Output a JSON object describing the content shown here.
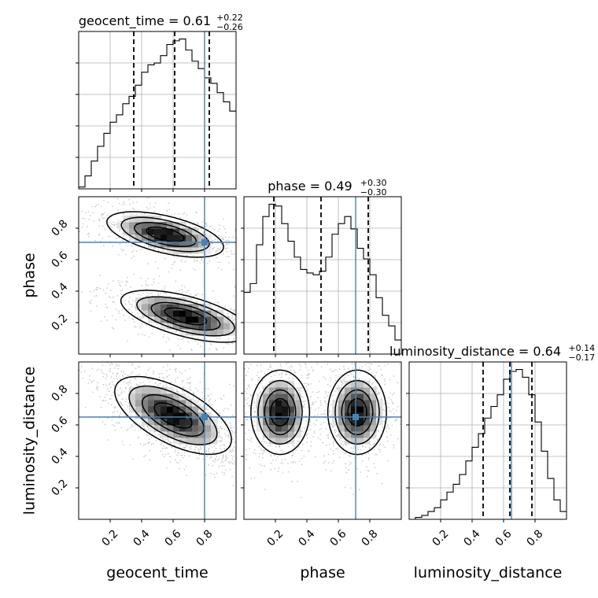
{
  "chart_data": {
    "type": "corner",
    "parameters": [
      "geocent_time",
      "phase",
      "luminosity_distance"
    ],
    "truths": [
      0.8,
      0.71,
      0.65
    ],
    "truth_color": "#4682b4",
    "axis_range": [
      0.0,
      1.0
    ],
    "ticks": [
      0.2,
      0.4,
      0.6,
      0.8
    ],
    "tick_labels": [
      "0.2",
      "0.4",
      "0.6",
      "0.8"
    ],
    "grid": true,
    "titles": [
      {
        "label": "geocent_time = 0.61",
        "sup": "+0.22",
        "sub": "−0.26"
      },
      {
        "label": "phase = 0.49",
        "sup": "+0.30",
        "sub": "−0.30"
      },
      {
        "label": "luminosity_distance = 0.64",
        "sup": "+0.14",
        "sub": "−0.17"
      }
    ],
    "histograms": [
      {
        "parameter": "geocent_time",
        "bin_edges_start": 0.0,
        "bin_width": 0.04,
        "counts": [
          1,
          7,
          15,
          23,
          30,
          36,
          40,
          46,
          50,
          56,
          63,
          67,
          68,
          72,
          78,
          80,
          81,
          75,
          69,
          65,
          60,
          57,
          52,
          47,
          42
        ],
        "quantiles": [
          0.35,
          0.61,
          0.83
        ]
      },
      {
        "parameter": "phase",
        "bin_edges_start": 0.0,
        "bin_width": 0.04,
        "counts": [
          35,
          40,
          62,
          78,
          85,
          84,
          74,
          64,
          55,
          48,
          46,
          45,
          47,
          55,
          68,
          74,
          78,
          71,
          60,
          54,
          45,
          32,
          22,
          16,
          8
        ],
        "quantiles": [
          0.19,
          0.49,
          0.79
        ]
      },
      {
        "parameter": "luminosity_distance",
        "bin_edges_start": 0.0,
        "bin_width": 0.04,
        "counts": [
          0,
          1,
          2,
          4,
          6,
          10,
          14,
          18,
          23,
          30,
          37,
          44,
          52,
          58,
          64,
          72,
          76,
          77,
          73,
          64,
          50,
          35,
          21,
          10,
          4
        ],
        "quantiles": [
          0.47,
          0.64,
          0.78
        ]
      }
    ],
    "joint": [
      {
        "x": "geocent_time",
        "y": "phase",
        "modes": [
          {
            "mx": 0.55,
            "my": 0.76,
            "sx": 0.18,
            "sy": 0.07,
            "rho": -0.55,
            "w": 1.0
          },
          {
            "mx": 0.68,
            "my": 0.24,
            "sx": 0.2,
            "sy": 0.08,
            "rho": -0.6,
            "w": 1.0
          }
        ]
      },
      {
        "x": "geocent_time",
        "y": "luminosity_distance",
        "modes": [
          {
            "mx": 0.6,
            "my": 0.66,
            "sx": 0.18,
            "sy": 0.12,
            "rho": -0.62,
            "w": 1.0
          }
        ]
      },
      {
        "x": "phase",
        "y": "luminosity_distance",
        "modes": [
          {
            "mx": 0.23,
            "my": 0.68,
            "sx": 0.09,
            "sy": 0.13,
            "rho": 0.0,
            "w": 1.0
          },
          {
            "mx": 0.72,
            "my": 0.68,
            "sx": 0.09,
            "sy": 0.13,
            "rho": 0.0,
            "w": 1.0
          }
        ]
      }
    ]
  }
}
